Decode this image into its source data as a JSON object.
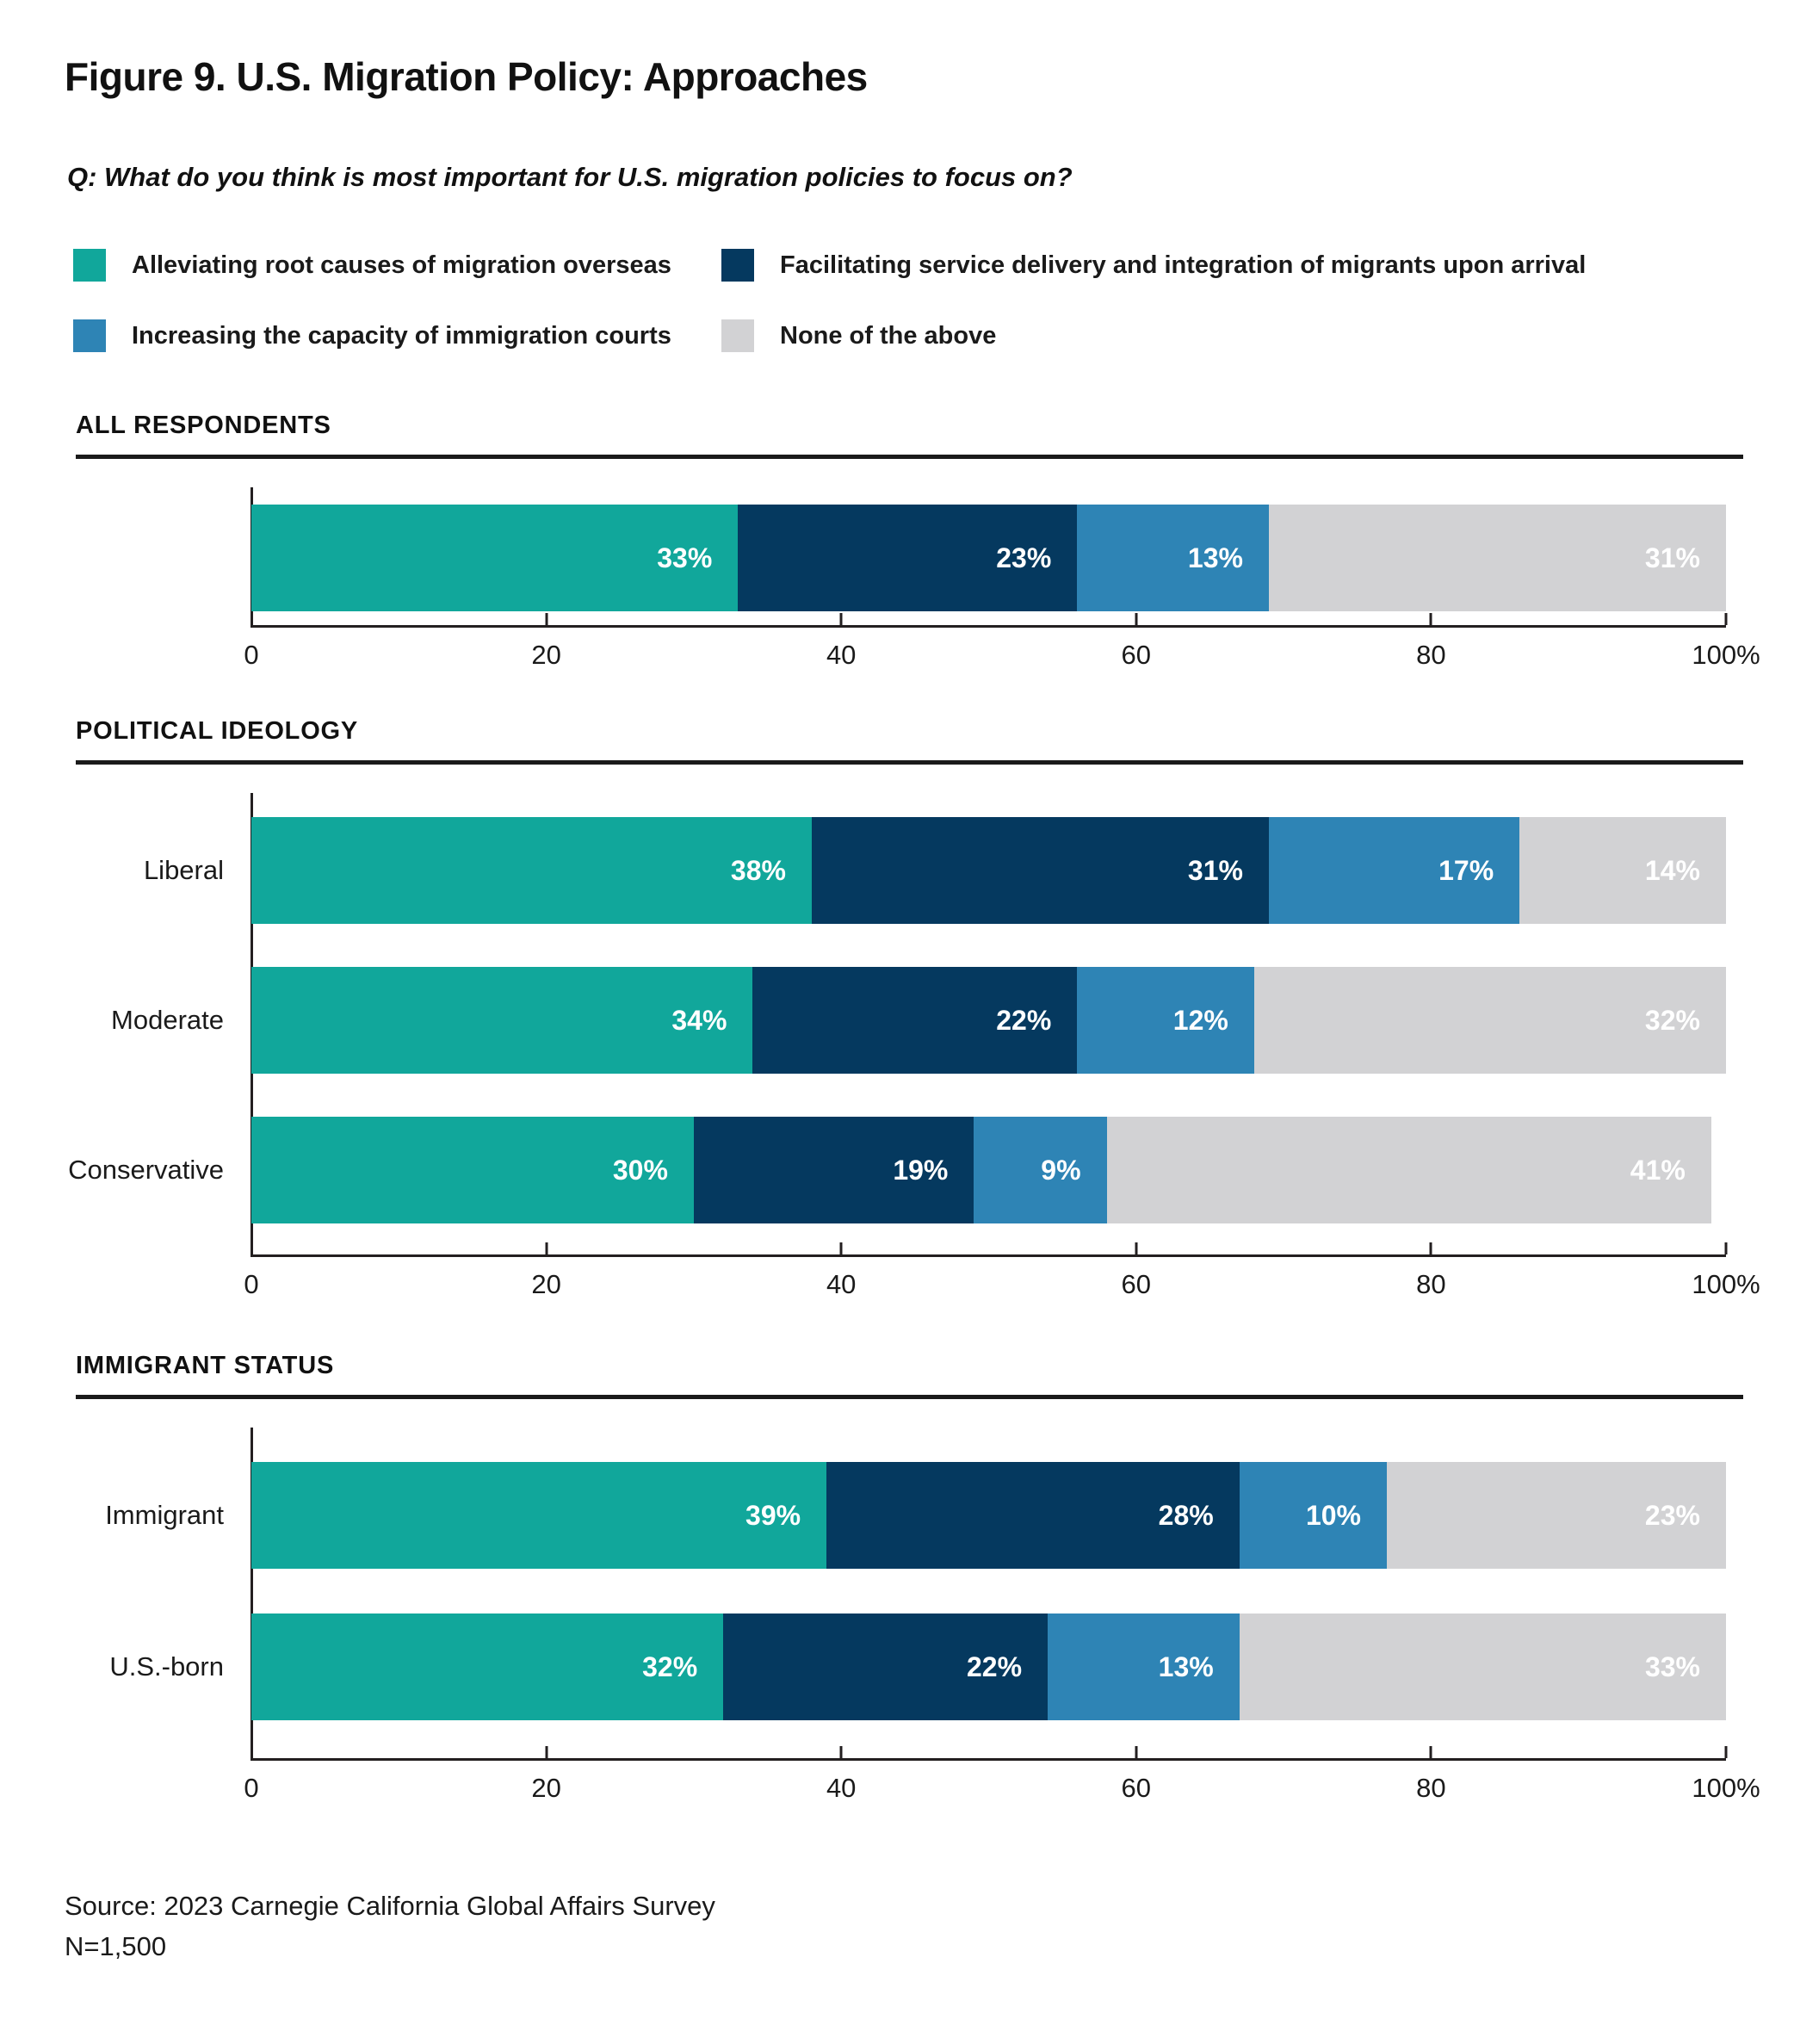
{
  "title": "Figure 9. U.S. Migration Policy: Approaches",
  "question": "Q: What do you think is most important for U.S. migration policies to focus on?",
  "source": {
    "line1": "Source: 2023 Carnegie California Global Affairs Survey",
    "line2": "N=1,500"
  },
  "colors": {
    "teal": "#11A79B",
    "navy": "#05395F",
    "blue": "#2E84B5",
    "gray": "#D2D2D4",
    "axis": "#231F20",
    "text": "#1A1A1A"
  },
  "chart_data": {
    "type": "bar",
    "stacked": true,
    "orientation": "horizontal",
    "unit": "%",
    "xlim": [
      0,
      100
    ],
    "grid": false,
    "legend_position": "top",
    "x_tick_values": [
      0,
      20,
      40,
      60,
      80,
      100
    ],
    "x_tick_labels": [
      "0",
      "20",
      "40",
      "60",
      "80",
      "100%"
    ],
    "series": [
      {
        "key": "root-causes",
        "name": "Alleviating root causes of migration overseas",
        "color": "#11A79B"
      },
      {
        "key": "service-delivery",
        "name": "Facilitating service delivery and integration of migrants upon arrival",
        "color": "#05395F"
      },
      {
        "key": "court-capacity",
        "name": "Increasing the capacity of immigration courts",
        "color": "#2E84B5"
      },
      {
        "key": "none-of-the-above",
        "name": "None of the above",
        "color": "#D2D2D4"
      }
    ],
    "sections": [
      {
        "heading": "ALL RESPONDENTS",
        "rows": [
          {
            "label": "",
            "values": [
              33,
              23,
              13,
              31
            ]
          }
        ]
      },
      {
        "heading": "POLITICAL IDEOLOGY",
        "rows": [
          {
            "label": "Liberal",
            "values": [
              38,
              31,
              17,
              14
            ]
          },
          {
            "label": "Moderate",
            "values": [
              34,
              22,
              12,
              32
            ]
          },
          {
            "label": "Conservative",
            "values": [
              30,
              19,
              9,
              41
            ]
          }
        ]
      },
      {
        "heading": "IMMIGRANT STATUS",
        "rows": [
          {
            "label": "Immigrant",
            "values": [
              39,
              28,
              10,
              23
            ]
          },
          {
            "label": "U.S.-born",
            "values": [
              32,
              22,
              13,
              33
            ]
          }
        ]
      }
    ]
  }
}
